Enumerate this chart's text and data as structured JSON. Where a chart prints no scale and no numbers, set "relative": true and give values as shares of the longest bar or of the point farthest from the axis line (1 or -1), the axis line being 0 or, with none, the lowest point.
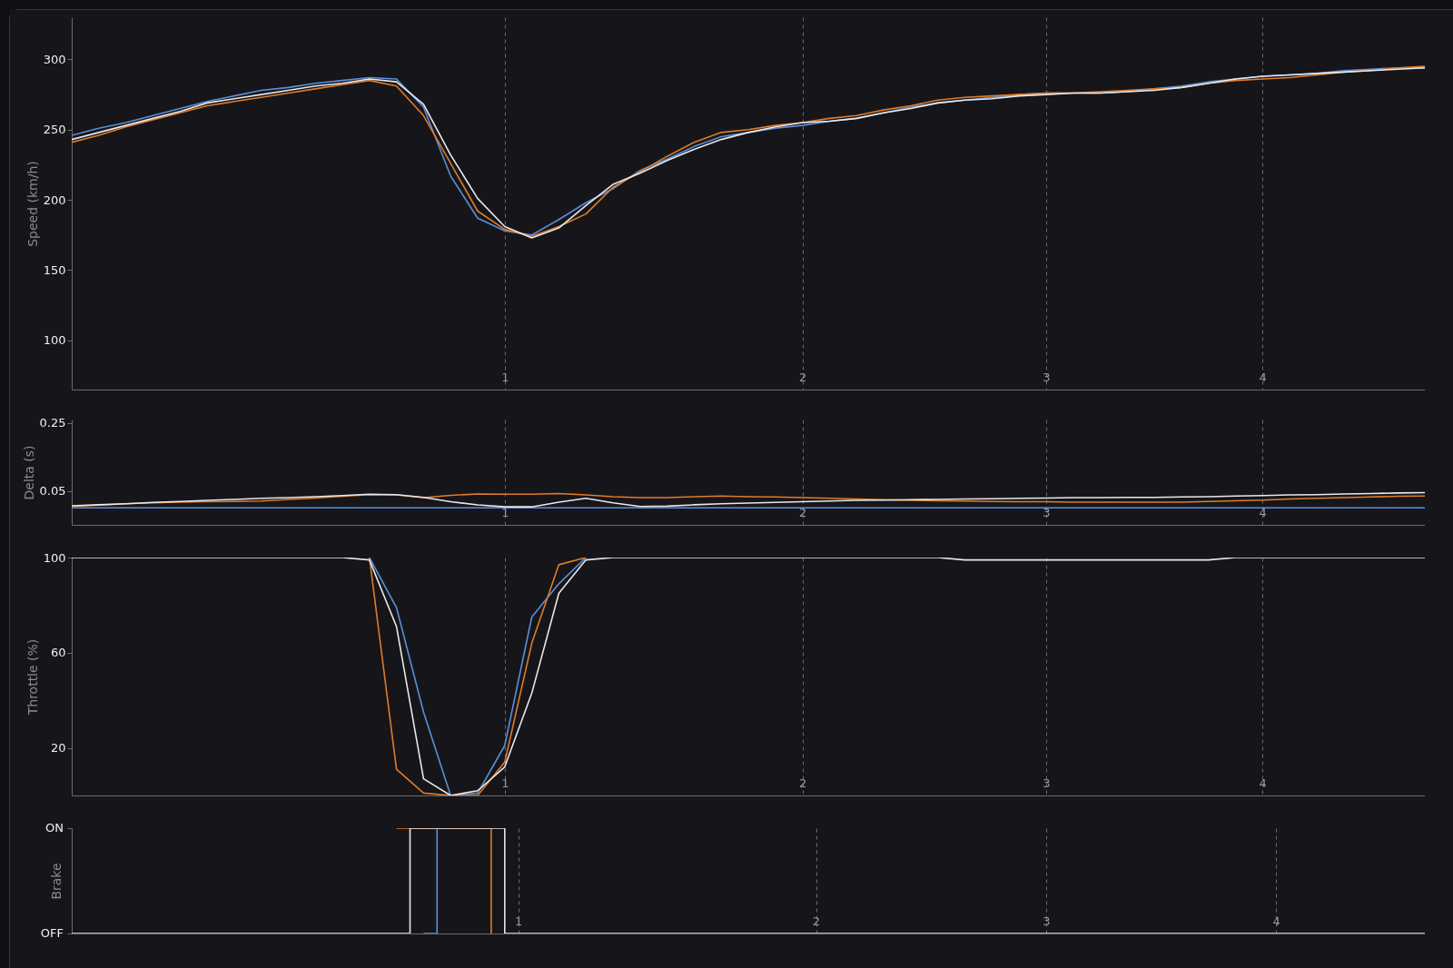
{
  "chart_data": [
    {
      "type": "line",
      "ylabel": "Speed (km/h)",
      "categories": [
        null,
        null,
        null,
        null,
        null,
        null,
        null,
        null,
        null,
        null,
        null,
        null,
        null,
        null,
        null,
        null,
        "1",
        null,
        null,
        null,
        null,
        null,
        null,
        null,
        null,
        null,
        null,
        "2",
        null,
        null,
        null,
        null,
        null,
        null,
        null,
        null,
        "3",
        null,
        null,
        null,
        null,
        null,
        null,
        null,
        "4",
        null,
        null,
        null,
        null,
        null,
        null
      ],
      "ylim": [
        65,
        330
      ],
      "yticks": [
        100,
        150,
        200,
        250,
        300
      ],
      "grid": "x",
      "series": [
        {
          "color": "#5b8fd9",
          "values": [
            246,
            251,
            255,
            260,
            265,
            270,
            274,
            278,
            280,
            283,
            285,
            287,
            286,
            266,
            217,
            187,
            178,
            175,
            186,
            198,
            208,
            221,
            229,
            238,
            245,
            248,
            251,
            253,
            256,
            258,
            262,
            266,
            269,
            271,
            273,
            275,
            276,
            276,
            276,
            277,
            279,
            281,
            284,
            286,
            288,
            289,
            290,
            292,
            293,
            294,
            294
          ]
        },
        {
          "color": "#e07b2a",
          "values": [
            241,
            246,
            252,
            257,
            262,
            267,
            270,
            273,
            276,
            279,
            282,
            285,
            281,
            260,
            226,
            192,
            179,
            174,
            181,
            190,
            209,
            220,
            231,
            241,
            248,
            250,
            253,
            255,
            258,
            260,
            264,
            267,
            271,
            273,
            274,
            275,
            276,
            276,
            277,
            278,
            279,
            280,
            283,
            285,
            286,
            287,
            289,
            291,
            292,
            294,
            295
          ]
        },
        {
          "color": "#e8e8ea",
          "values": [
            243,
            248,
            253,
            258,
            263,
            269,
            272,
            275,
            278,
            281,
            283,
            286,
            284,
            268,
            232,
            201,
            181,
            173,
            180,
            196,
            211,
            219,
            228,
            236,
            243,
            248,
            252,
            255,
            256,
            258,
            262,
            265,
            269,
            271,
            272,
            274,
            275,
            276,
            276,
            277,
            278,
            280,
            283,
            286,
            288,
            289,
            290,
            291,
            292,
            293,
            294
          ]
        }
      ]
    },
    {
      "type": "line",
      "ylabel": "Delta (s)",
      "categories": [
        null,
        null,
        null,
        null,
        null,
        null,
        null,
        null,
        null,
        null,
        null,
        null,
        null,
        null,
        null,
        null,
        "1",
        null,
        null,
        null,
        null,
        null,
        null,
        null,
        null,
        null,
        null,
        "2",
        null,
        null,
        null,
        null,
        null,
        null,
        null,
        null,
        "3",
        null,
        null,
        null,
        null,
        null,
        null,
        null,
        "4",
        null,
        null,
        null,
        null,
        null,
        null
      ],
      "ylim": [
        -0.05,
        0.26
      ],
      "yticks": [
        0.05,
        0.25
      ],
      "grid": "x",
      "series": [
        {
          "color": "#5b8fd9",
          "values": [
            0,
            0,
            0,
            0,
            0,
            0,
            0,
            0,
            0,
            0,
            0,
            0,
            0,
            0,
            0,
            0,
            0,
            0,
            0,
            0,
            0,
            0,
            0,
            0,
            0,
            0,
            0,
            0,
            0,
            0,
            0,
            0,
            0,
            0,
            0,
            0,
            0,
            0,
            0,
            0,
            0,
            0,
            0,
            0,
            0,
            0,
            0,
            0,
            0,
            0,
            0
          ]
        },
        {
          "color": "#e07b2a",
          "values": [
            0.004,
            0.008,
            0.012,
            0.015,
            0.017,
            0.018,
            0.019,
            0.02,
            0.025,
            0.029,
            0.034,
            0.039,
            0.038,
            0.03,
            0.037,
            0.041,
            0.04,
            0.04,
            0.042,
            0.038,
            0.033,
            0.03,
            0.03,
            0.033,
            0.035,
            0.033,
            0.032,
            0.03,
            0.028,
            0.026,
            0.024,
            0.022,
            0.021,
            0.02,
            0.019,
            0.018,
            0.018,
            0.017,
            0.017,
            0.017,
            0.017,
            0.017,
            0.019,
            0.021,
            0.023,
            0.026,
            0.028,
            0.03,
            0.032,
            0.034,
            0.035
          ]
        },
        {
          "color": "#e8e8ea",
          "values": [
            0.006,
            0.009,
            0.012,
            0.016,
            0.019,
            0.022,
            0.025,
            0.028,
            0.03,
            0.033,
            0.036,
            0.04,
            0.039,
            0.031,
            0.018,
            0.009,
            0.003,
            0.003,
            0.017,
            0.028,
            0.015,
            0.004,
            0.005,
            0.009,
            0.012,
            0.014,
            0.016,
            0.018,
            0.02,
            0.022,
            0.023,
            0.024,
            0.025,
            0.026,
            0.027,
            0.028,
            0.029,
            0.03,
            0.03,
            0.031,
            0.031,
            0.032,
            0.033,
            0.035,
            0.036,
            0.038,
            0.039,
            0.041,
            0.042,
            0.044,
            0.045
          ]
        }
      ]
    },
    {
      "type": "line",
      "ylabel": "Throttle (%)",
      "categories": [
        null,
        null,
        null,
        null,
        null,
        null,
        null,
        null,
        null,
        null,
        null,
        null,
        null,
        null,
        null,
        null,
        "1",
        null,
        null,
        null,
        null,
        null,
        null,
        null,
        null,
        null,
        null,
        "2",
        null,
        null,
        null,
        null,
        null,
        null,
        null,
        null,
        "3",
        null,
        null,
        null,
        null,
        null,
        null,
        null,
        "4",
        null,
        null,
        null,
        null,
        null,
        null
      ],
      "ylim": [
        0,
        100
      ],
      "yticks": [
        20,
        60,
        100
      ],
      "grid": "x",
      "series": [
        {
          "color": "#5b8fd9",
          "values": [
            null,
            null,
            null,
            null,
            null,
            null,
            null,
            null,
            null,
            null,
            null,
            100,
            79,
            35,
            0,
            1,
            21,
            75,
            89,
            100,
            null,
            null,
            null,
            null,
            null,
            null,
            null,
            null,
            null,
            null,
            null,
            null,
            null,
            null,
            null,
            null,
            null,
            null,
            null,
            null,
            null,
            null,
            null,
            null,
            null,
            null,
            null,
            null,
            null,
            null,
            null
          ]
        },
        {
          "color": "#e07b2a",
          "values": [
            null,
            null,
            null,
            null,
            null,
            null,
            null,
            null,
            null,
            null,
            null,
            100,
            11,
            1,
            0,
            0,
            14,
            64,
            97,
            100,
            null,
            null,
            null,
            null,
            null,
            null,
            null,
            null,
            null,
            null,
            null,
            null,
            null,
            null,
            null,
            null,
            null,
            null,
            null,
            null,
            null,
            null,
            null,
            null,
            null,
            null,
            null,
            null,
            null,
            null,
            null
          ]
        },
        {
          "color": "#e8e8ea",
          "values": [
            100,
            100,
            100,
            100,
            100,
            100,
            100,
            100,
            100,
            100,
            100,
            99,
            71,
            7,
            0,
            2,
            12,
            43,
            85,
            99,
            100,
            100,
            100,
            100,
            100,
            100,
            100,
            100,
            100,
            100,
            100,
            100,
            100,
            99,
            99,
            99,
            99,
            99,
            99,
            99,
            99,
            99,
            99,
            100,
            100,
            100,
            100,
            100,
            100,
            100,
            100
          ]
        }
      ]
    },
    {
      "type": "step",
      "ylabel": "Brake",
      "categories": [
        null,
        null,
        null,
        null,
        null,
        null,
        null,
        null,
        null,
        null,
        null,
        null,
        null,
        null,
        null,
        null,
        null,
        null,
        null,
        null,
        null,
        null,
        null,
        null,
        null,
        null,
        null,
        null,
        null,
        null,
        null,
        null,
        null,
        "1",
        null,
        null,
        null,
        null,
        null,
        null,
        null,
        null,
        null,
        null,
        null,
        null,
        null,
        null,
        null,
        null,
        null,
        null,
        null,
        null,
        null,
        "2",
        null,
        null,
        null,
        null,
        null,
        null,
        null,
        null,
        null,
        null,
        null,
        null,
        null,
        null,
        null,
        null,
        "3",
        null,
        null,
        null,
        null,
        null,
        null,
        null,
        null,
        null,
        null,
        null,
        null,
        null,
        null,
        null,
        null,
        "4",
        null,
        null,
        null,
        null,
        null,
        null,
        null,
        null,
        null,
        null,
        null
      ],
      "relative": true,
      "annotations": [
        "ON",
        "OFF"
      ],
      "grid": "x",
      "series": [
        {
          "color": "#5b8fd9",
          "values": [
            null,
            null,
            null,
            null,
            null,
            null,
            null,
            null,
            null,
            null,
            null,
            null,
            null,
            null,
            null,
            null,
            null,
            null,
            null,
            null,
            null,
            null,
            null,
            null,
            null,
            null,
            0,
            1,
            null,
            null,
            null,
            null,
            null,
            null,
            null,
            null,
            null,
            null,
            null,
            null,
            null,
            null,
            null,
            null,
            null,
            null,
            null,
            null,
            null,
            null,
            null,
            null,
            null,
            null,
            null,
            null,
            null,
            null,
            null,
            null,
            null,
            null,
            null,
            null,
            null,
            null,
            null,
            null,
            null,
            null,
            null,
            null,
            null,
            null,
            null,
            null,
            null,
            null,
            null,
            null,
            null,
            null,
            null,
            null,
            null,
            null,
            null,
            null,
            null,
            null,
            null,
            null,
            null,
            null,
            null,
            null,
            null,
            null,
            null,
            null,
            null
          ]
        },
        {
          "color": "#e07b2a",
          "values": [
            null,
            null,
            null,
            null,
            null,
            null,
            null,
            null,
            null,
            null,
            null,
            null,
            null,
            null,
            null,
            null,
            null,
            null,
            null,
            null,
            null,
            null,
            null,
            null,
            1,
            1,
            null,
            null,
            null,
            null,
            1,
            0,
            null,
            null,
            null,
            null,
            null,
            null,
            null,
            null,
            null,
            null,
            null,
            null,
            null,
            null,
            null,
            null,
            null,
            null,
            null,
            null,
            null,
            null,
            null,
            null,
            null,
            null,
            null,
            null,
            null,
            null,
            null,
            null,
            null,
            null,
            null,
            null,
            null,
            null,
            null,
            null,
            null,
            null,
            null,
            null,
            null,
            null,
            null,
            null,
            null,
            null,
            null,
            null,
            null,
            null,
            null,
            null,
            null,
            null,
            null,
            null,
            null,
            null,
            null,
            null,
            null,
            null,
            null,
            null,
            null
          ]
        },
        {
          "color": "#e8e8ea",
          "values": [
            0,
            0,
            0,
            0,
            0,
            0,
            0,
            0,
            0,
            0,
            0,
            0,
            0,
            0,
            0,
            0,
            0,
            0,
            0,
            0,
            0,
            0,
            0,
            0,
            0,
            1,
            1,
            1,
            1,
            1,
            1,
            1,
            0,
            0,
            0,
            0,
            0,
            0,
            0,
            0,
            0,
            0,
            0,
            0,
            0,
            0,
            0,
            0,
            0,
            0,
            0,
            0,
            0,
            0,
            0,
            0,
            0,
            0,
            0,
            0,
            0,
            0,
            0,
            0,
            0,
            0,
            0,
            0,
            0,
            0,
            0,
            0,
            0,
            0,
            0,
            0,
            0,
            0,
            0,
            0,
            0,
            0,
            0,
            0,
            0,
            0,
            0,
            0,
            0,
            0,
            0,
            0,
            0,
            0,
            0,
            0,
            0,
            0,
            0,
            0,
            0
          ]
        }
      ]
    }
  ]
}
